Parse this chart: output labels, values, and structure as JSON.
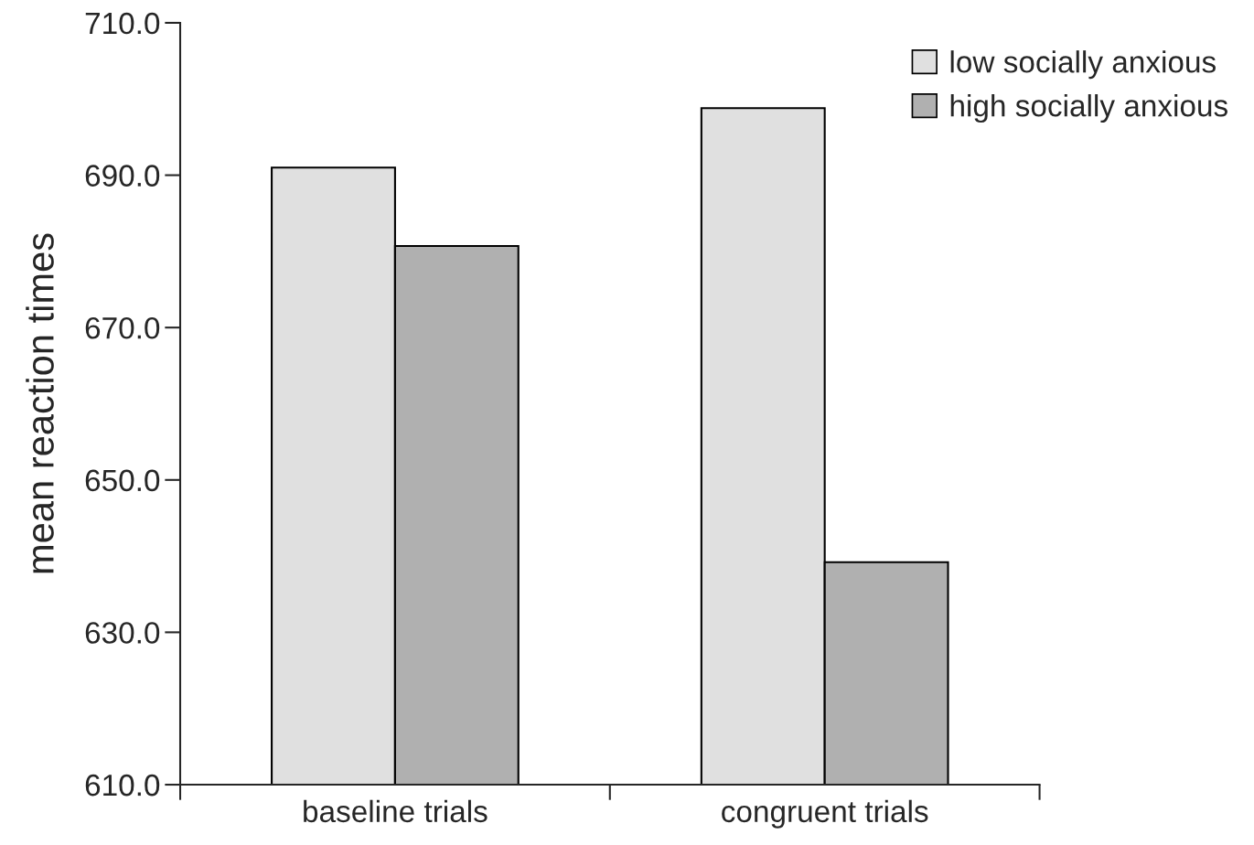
{
  "chart_data": {
    "type": "bar",
    "ylabel": "mean reaction times",
    "categories": [
      "baseline trials",
      "congruent trials"
    ],
    "series": [
      {
        "name": "low socially anxious",
        "color": "#e0e0e0",
        "values": [
          691.0,
          698.8
        ]
      },
      {
        "name": "high socially anxious",
        "color": "#b0b0b0",
        "values": [
          680.7,
          639.2
        ]
      }
    ],
    "ylim": [
      610,
      710
    ],
    "yticks": [
      {
        "value": 610,
        "label": "610.0"
      },
      {
        "value": 630,
        "label": "630.0"
      },
      {
        "value": 650,
        "label": "650.0"
      },
      {
        "value": 670,
        "label": "670.0"
      },
      {
        "value": 690,
        "label": "690.0"
      },
      {
        "value": 710,
        "label": "710.0"
      }
    ],
    "legend": "top right",
    "grid": false
  }
}
